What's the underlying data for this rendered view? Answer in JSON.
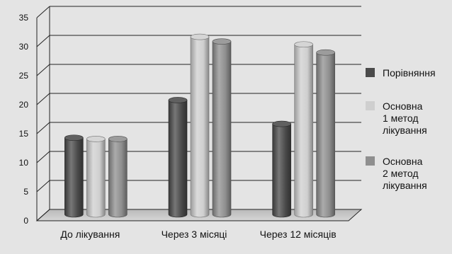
{
  "chart_data": {
    "type": "bar",
    "categories": [
      "До лікування",
      "Через 3 місяці",
      "Через 12 місяців"
    ],
    "series": [
      {
        "name": "Порівняння",
        "values": [
          13.2,
          19.7,
          15.6
        ],
        "color": "#4a4a4a"
      },
      {
        "name": "Основна\n1 метод\nлікування",
        "values": [
          13.0,
          30.6,
          29.3
        ],
        "color": "#cfcfcf"
      },
      {
        "name": "Основна\n2 метод\nлікування",
        "values": [
          13.0,
          29.8,
          27.9
        ],
        "color": "#8f8f8f"
      }
    ],
    "ylim": [
      0,
      35
    ],
    "yticks": [
      0,
      5,
      10,
      15,
      20,
      25,
      30,
      35
    ],
    "grid": true,
    "legend": "right",
    "style": "3d-cylinder"
  }
}
